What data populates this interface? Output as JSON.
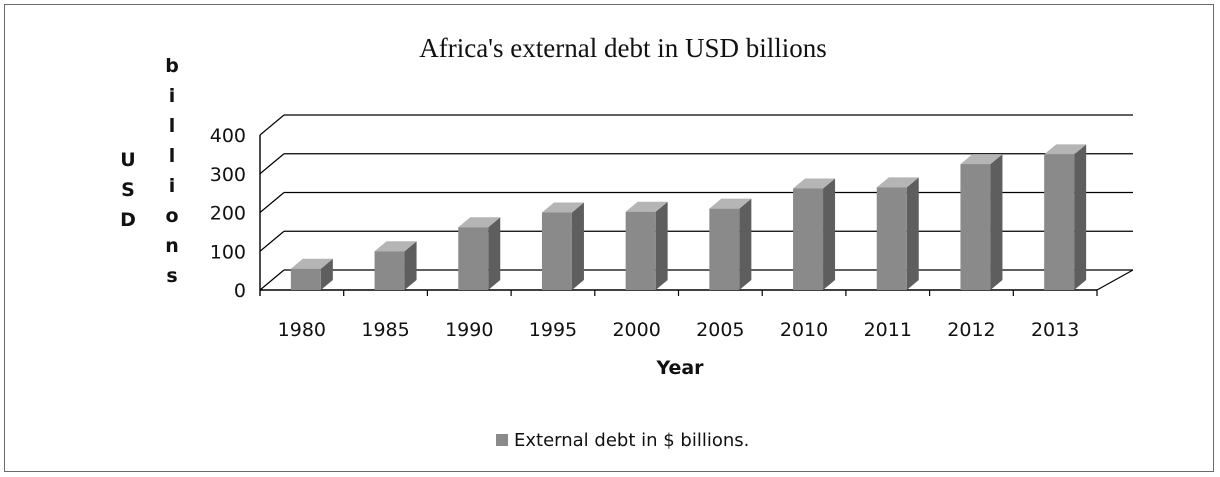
{
  "chart_data": {
    "type": "bar",
    "title": "Africa's external debt in USD billions",
    "xlabel": "Year",
    "ylabel_outer": "USD",
    "ylabel_inner": "billions",
    "categories": [
      "1980",
      "1985",
      "1990",
      "1995",
      "2000",
      "2005",
      "2010",
      "2011",
      "2012",
      "2013"
    ],
    "series": [
      {
        "name": "External debt in $ billions.",
        "values": [
          55,
          100,
          162,
          200,
          202,
          210,
          262,
          265,
          325,
          350
        ]
      }
    ],
    "ylim": [
      0,
      400
    ],
    "yticks": [
      "0",
      "100",
      "200",
      "300",
      "400"
    ],
    "grid": true,
    "legend_position": "bottom",
    "colors": {
      "bar_front": "#8a8a8a",
      "bar_side": "#5e5e5e",
      "bar_top": "#b5b5b5",
      "grid": "#000000"
    }
  }
}
